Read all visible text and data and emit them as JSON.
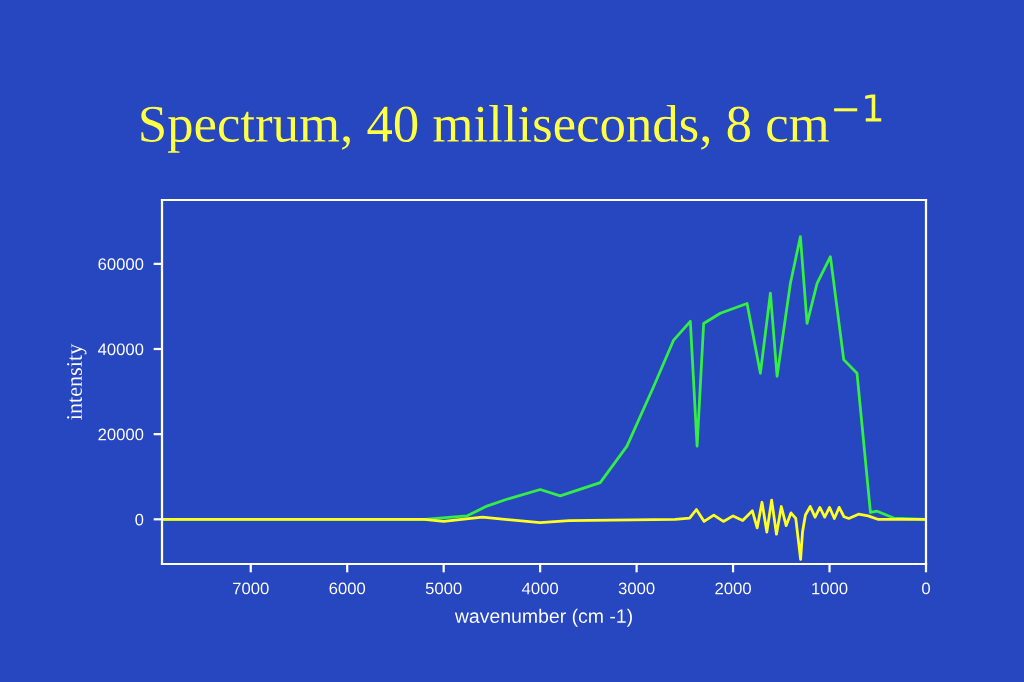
{
  "chart_data": {
    "type": "line",
    "title": "Spectrum, 40 milliseconds, 8 cm$^{−1}$",
    "xlabel": "wavenumber (cm -1)",
    "ylabel": "intensity",
    "xlim": [
      7920,
      0
    ],
    "xticks": [
      7000,
      6000,
      5000,
      4000,
      3000,
      2000,
      1000,
      0
    ],
    "ylim": [
      -10500,
      75000
    ],
    "yticks": [
      0,
      20000,
      40000,
      60000
    ],
    "grid": false,
    "legend": false,
    "marker": "none",
    "line_style": "solid",
    "series": [
      {
        "color": "#33ee44",
        "x": [
          7920,
          5200,
          4760,
          4552,
          4345,
          3999,
          3792,
          3377,
          3100,
          2823,
          2616,
          2443,
          2373,
          2305,
          2132,
          1855,
          1717,
          1613,
          1544,
          1406,
          1302,
          1233,
          1129,
          991,
          853,
          715,
          576,
          507,
          334,
          0
        ],
        "values": [
          0,
          0,
          800,
          3100,
          4700,
          7000,
          5500,
          8600,
          17200,
          31200,
          42100,
          46500,
          17200,
          46000,
          48400,
          50700,
          34300,
          53100,
          33600,
          55400,
          66400,
          46000,
          55400,
          61700,
          37500,
          34300,
          1600,
          1900,
          300,
          0
        ]
      },
      {
        "color": "#ffff22",
        "x": [
          7920,
          5200,
          5000,
          4600,
          4000,
          3700,
          2600,
          2450,
          2380,
          2300,
          2200,
          2100,
          2000,
          1900,
          1800,
          1750,
          1700,
          1650,
          1600,
          1550,
          1500,
          1450,
          1400,
          1350,
          1300,
          1280,
          1250,
          1200,
          1150,
          1100,
          1050,
          1000,
          950,
          900,
          850,
          800,
          700,
          600,
          500,
          0
        ],
        "values": [
          0,
          0,
          -500,
          500,
          -800,
          -300,
          0,
          300,
          2300,
          -500,
          1000,
          -500,
          800,
          -300,
          2000,
          -2000,
          4000,
          -3000,
          4500,
          -3500,
          3000,
          -1500,
          1500,
          200,
          -9400,
          -3000,
          1000,
          3000,
          500,
          2800,
          500,
          2800,
          200,
          2800,
          600,
          200,
          1200,
          800,
          0,
          0
        ]
      }
    ]
  }
}
